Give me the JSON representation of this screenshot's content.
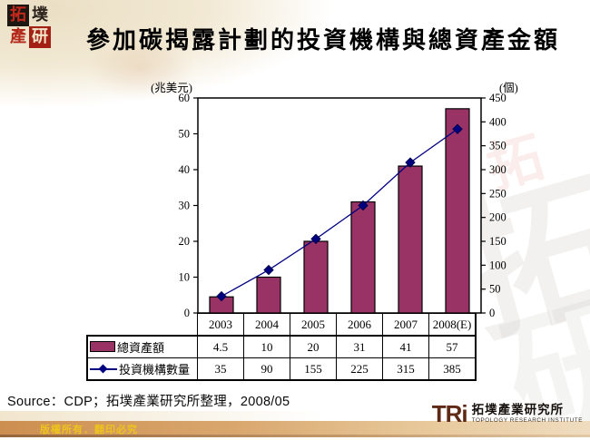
{
  "header": {
    "title": "參加碳揭露計劃的投資機構與總資產金額",
    "corner_logo_chars": [
      "拓",
      "墣",
      "產",
      "研"
    ]
  },
  "chart_data": {
    "type": "bar",
    "subtype": "combo-bar-line-with-data-table",
    "categories": [
      "2003",
      "2004",
      "2005",
      "2006",
      "2007",
      "2008(E)"
    ],
    "series": [
      {
        "name": "總資產額",
        "type": "bar",
        "axis": "left",
        "color": "#993366",
        "values": [
          4.5,
          10,
          20,
          31,
          41,
          57
        ]
      },
      {
        "name": "投資機構數量",
        "type": "line",
        "axis": "right",
        "color": "#000080",
        "values": [
          35,
          90,
          155,
          225,
          315,
          385
        ]
      }
    ],
    "left_axis": {
      "unit_label": "(兆美元)",
      "min": 0,
      "max": 60,
      "step": 10
    },
    "right_axis": {
      "unit_label": "(個)",
      "min": 0,
      "max": 450,
      "step": 50
    },
    "grid": false,
    "legend_position": "data-table-left",
    "plot_background": "#ffffff"
  },
  "footer": {
    "source": "Source：CDP；拓墣產業研究所整理，2008/05",
    "copyright": "版權所有．翻印必究",
    "tri_mark": "TRi",
    "tri_name_zh": "拓墣產業研究所",
    "tri_name_en": "TOPOLOGY RESEARCH INSTITUTE"
  },
  "watermarks": {
    "wm1": "拓",
    "wm2": "研",
    "wm3": "拓"
  },
  "colors": {
    "bar_fill": "#993366",
    "bar_stroke": "#000000",
    "line_color": "#000080",
    "copyright_text": "#edc31d"
  }
}
